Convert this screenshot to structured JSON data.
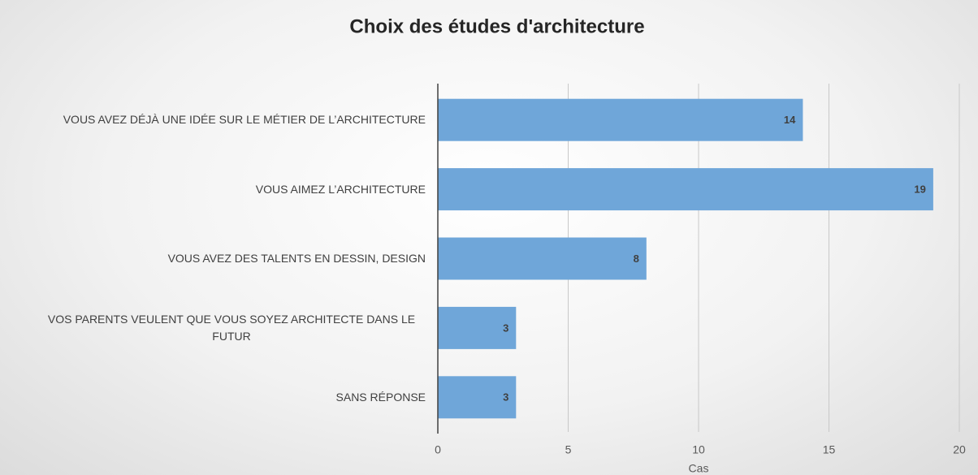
{
  "chart_data": {
    "type": "bar",
    "orientation": "horizontal",
    "title": "Choix des études d'architecture",
    "xlabel": "Cas",
    "categories": [
      "VOUS AVEZ DÉJÀ UNE IDÉE SUR LE MÉTIER DE L’ARCHITECTURE",
      "VOUS AIMEZ L’ARCHITECTURE",
      "VOUS AVEZ DES TALENTS EN DESSIN, DESIGN",
      "VOS PARENTS VEULENT QUE VOUS SOYEZ ARCHITECTE DANS LE FUTUR",
      "SANS RÉPONSE"
    ],
    "values": [
      14,
      19,
      8,
      3,
      3
    ],
    "color": "#6fa6d9",
    "xlim": [
      0,
      20
    ],
    "xticks": [
      0,
      5,
      10,
      15,
      20
    ],
    "grid": true
  }
}
